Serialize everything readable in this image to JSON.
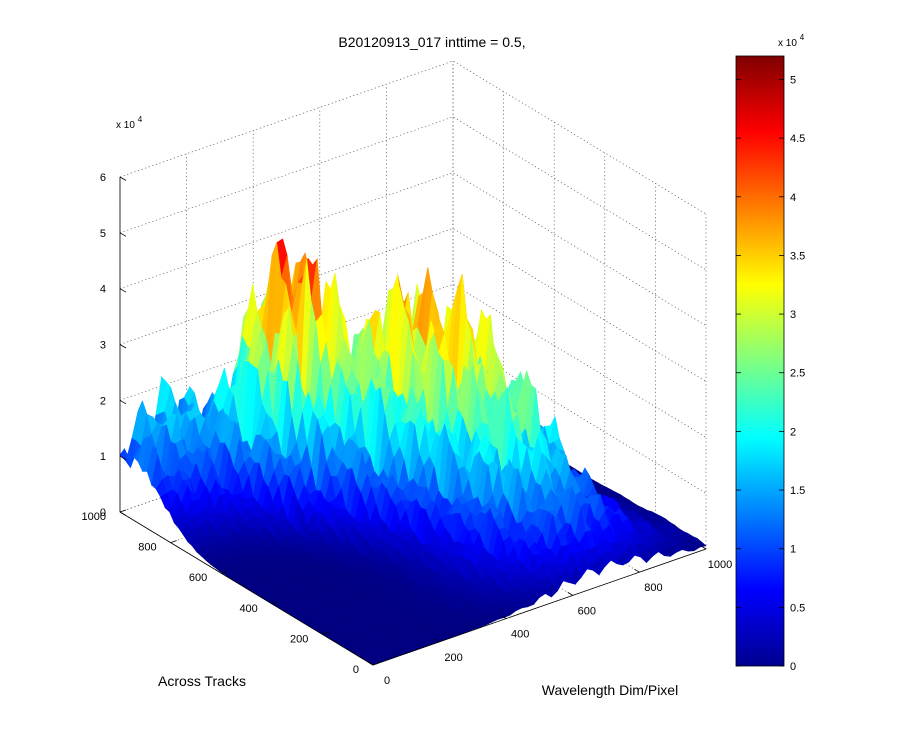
{
  "chart_data": {
    "type": "surface",
    "title": "B20120913_017 inttime = 0.5,",
    "x_axis": {
      "label": "Wavelength Dim/Pixel",
      "ticks": [
        0,
        200,
        400,
        600,
        800,
        1000
      ],
      "range": [
        0,
        1000
      ]
    },
    "y_axis": {
      "label": "Across Tracks",
      "ticks": [
        0,
        200,
        400,
        600,
        800,
        1000
      ],
      "range": [
        0,
        1000
      ]
    },
    "z_axis": {
      "label": "",
      "ticks": [
        0,
        1,
        2,
        3,
        4,
        5,
        6
      ],
      "range": [
        0,
        6
      ],
      "exponent_label": "x 10",
      "exponent_power": "4"
    },
    "colorbar": {
      "ticks": [
        0,
        0.5,
        1,
        1.5,
        2,
        2.5,
        3,
        3.5,
        4,
        4.5,
        5
      ],
      "tick_labels": [
        "0",
        "0.5",
        "1",
        "1.5",
        "2",
        "2.5",
        "3",
        "3.5",
        "4",
        "4.5",
        "5"
      ],
      "range": [
        0,
        5.2
      ],
      "exponent_label": "x 10",
      "exponent_power": "4",
      "colormap": "jet"
    },
    "peak_value_scaled": 5.2,
    "grid": true,
    "surface_features": [
      {
        "x": 350,
        "y": 800,
        "z": 5.2
      },
      {
        "x": 520,
        "y": 600,
        "z": 3.5
      },
      {
        "x": 620,
        "y": 450,
        "z": 3.4
      },
      {
        "x": 650,
        "y": 200,
        "z": 1.2
      },
      {
        "x": 150,
        "y": 950,
        "z": 2.1
      }
    ]
  }
}
